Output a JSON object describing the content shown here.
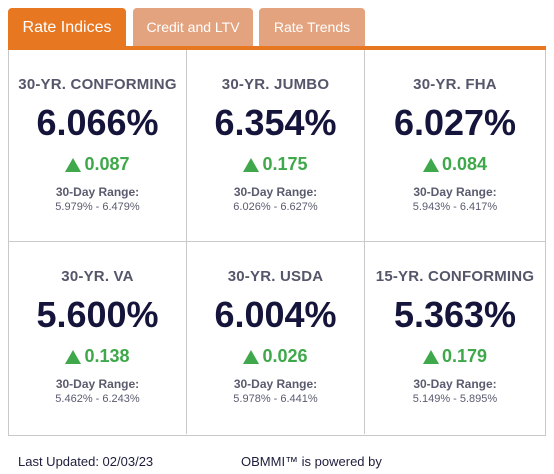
{
  "tabs": [
    {
      "label": "Rate Indices",
      "active": true
    },
    {
      "label": "Credit and LTV",
      "active": false
    },
    {
      "label": "Rate Trends",
      "active": false
    }
  ],
  "colors": {
    "accent": "#e87722",
    "inactive_tab": "#e3a37f",
    "positive": "#3ea84a",
    "rate_text": "#15143a"
  },
  "cards": [
    {
      "title": "30-YR. CONFORMING",
      "rate": "6.066%",
      "change": "0.087",
      "direction_icon": "up-triangle-icon",
      "range_label": "30-Day Range:",
      "range": "5.979% - 6.479%"
    },
    {
      "title": "30-YR. JUMBO",
      "rate": "6.354%",
      "change": "0.175",
      "direction_icon": "up-triangle-icon",
      "range_label": "30-Day Range:",
      "range": "6.026% - 6.627%"
    },
    {
      "title": "30-YR. FHA",
      "rate": "6.027%",
      "change": "0.084",
      "direction_icon": "up-triangle-icon",
      "range_label": "30-Day Range:",
      "range": "5.943% - 6.417%"
    },
    {
      "title": "30-YR. VA",
      "rate": "5.600%",
      "change": "0.138",
      "direction_icon": "up-triangle-icon",
      "range_label": "30-Day Range:",
      "range": "5.462% - 6.243%"
    },
    {
      "title": "30-YR. USDA",
      "rate": "6.004%",
      "change": "0.026",
      "direction_icon": "up-triangle-icon",
      "range_label": "30-Day Range:",
      "range": "5.978% - 6.441%"
    },
    {
      "title": "15-YR. CONFORMING",
      "rate": "5.363%",
      "change": "0.179",
      "direction_icon": "up-triangle-icon",
      "range_label": "30-Day Range:",
      "range": "5.149% - 5.895%"
    }
  ],
  "footer": {
    "last_updated": "Last Updated: 02/03/23",
    "powered_by": "OBMMI™ is powered by"
  }
}
